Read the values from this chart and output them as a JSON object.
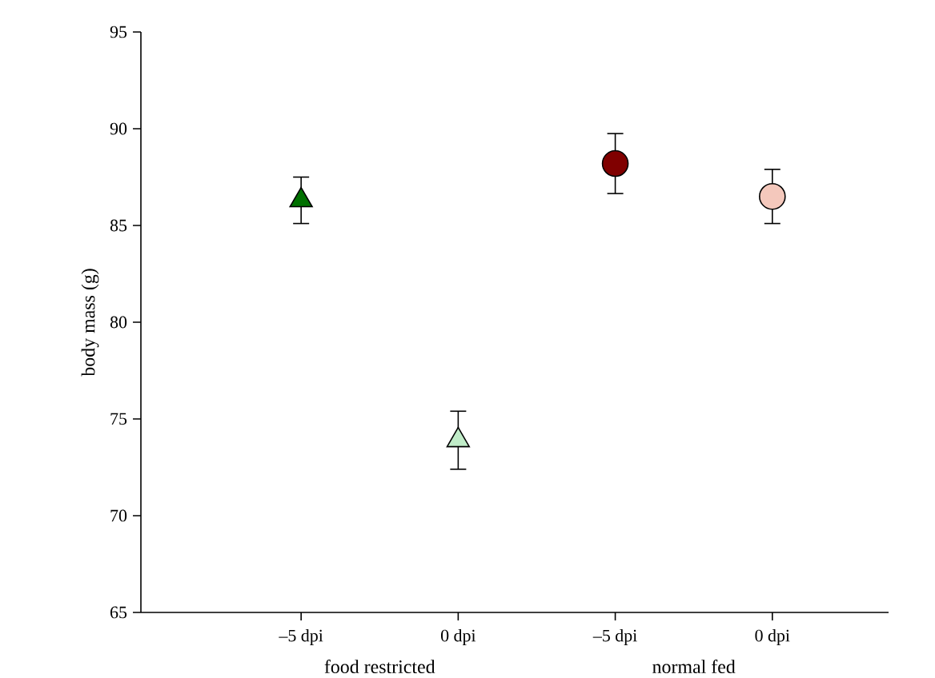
{
  "chart_data": {
    "type": "scatter",
    "ylabel": "body mass (g)",
    "categories": [
      "–5 dpi",
      "0 dpi",
      "–5 dpi",
      "0 dpi"
    ],
    "series": [
      {
        "marker": "triangle",
        "colors": [
          "#007000",
          "#c0ecc8",
          null,
          null
        ],
        "values": [
          86.3,
          73.9,
          null,
          null
        ],
        "errors": [
          1.2,
          1.5,
          null,
          null
        ]
      },
      {
        "marker": "circle",
        "colors": [
          null,
          null,
          "#800000",
          "#f4c8bc"
        ],
        "values": [
          null,
          null,
          88.2,
          86.5
        ],
        "errors": [
          null,
          null,
          1.55,
          1.4
        ]
      }
    ],
    "ylim": [
      65,
      95
    ],
    "yticks": [
      65,
      70,
      75,
      80,
      85,
      90,
      95
    ],
    "annotations": [
      "food restricted",
      "normal fed"
    ]
  }
}
